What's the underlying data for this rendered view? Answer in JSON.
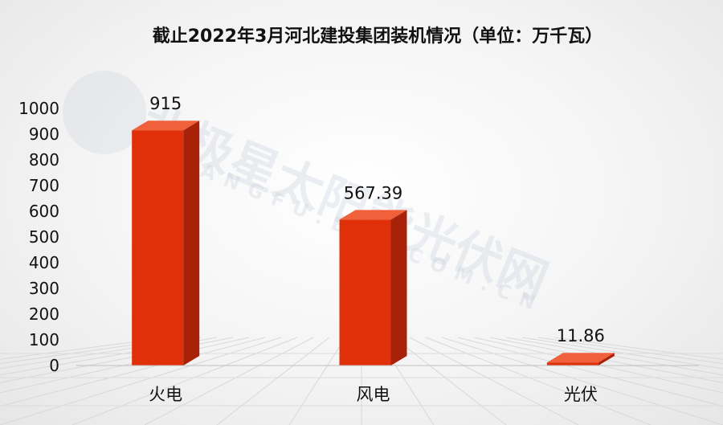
{
  "chart_data": {
    "type": "bar",
    "title": "截止2022年3月河北建投集团装机情况（单位：万千瓦）",
    "categories": [
      "火电",
      "风电",
      "光伏"
    ],
    "values": [
      915,
      567.39,
      11.86
    ],
    "data_labels": [
      "915",
      "567.39",
      "11.86"
    ],
    "ylim": [
      0,
      1000
    ],
    "yticks": [
      0,
      100,
      200,
      300,
      400,
      500,
      600,
      700,
      800,
      900,
      1000
    ],
    "xlabel": "",
    "ylabel": "",
    "grid": false,
    "legend": "none",
    "bar_color": "#e0300a",
    "bar_side_color": "#a8220a",
    "bar_top_color": "#f0603a"
  },
  "watermark": {
    "main": "北极星太阳能光伏网",
    "sub": "GUANGFU.BJX.COM.CN"
  }
}
